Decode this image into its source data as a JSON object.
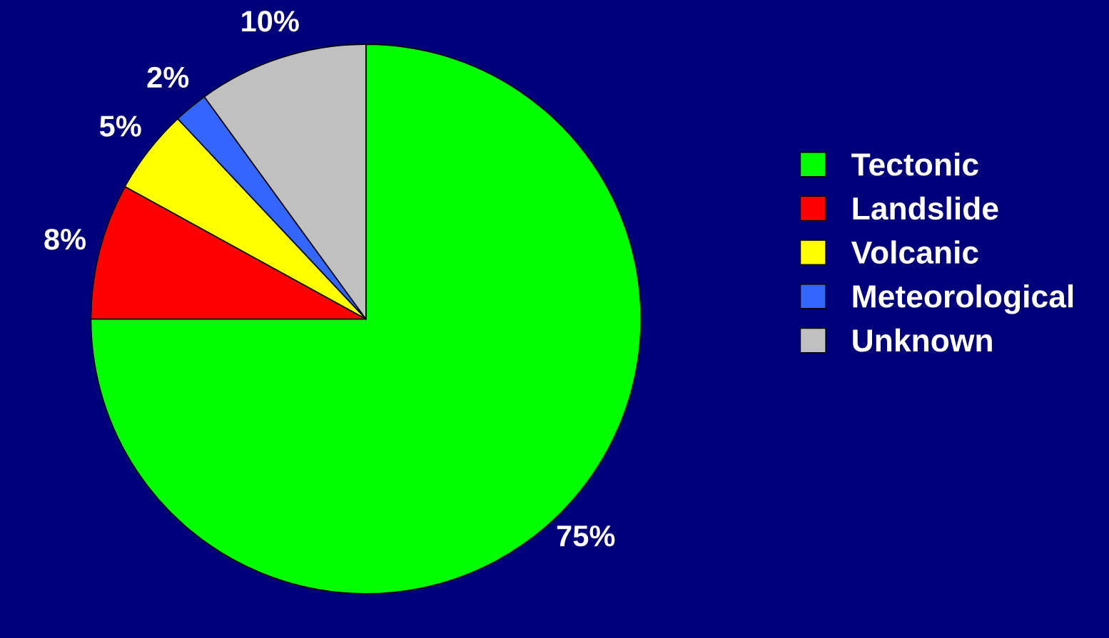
{
  "chart_data": {
    "type": "pie",
    "categories": [
      "Tectonic",
      "Landslide",
      "Volcanic",
      "Meteorological",
      "Unknown"
    ],
    "values": [
      75,
      8,
      5,
      2,
      10
    ],
    "colors": [
      "#00ff00",
      "#ff0000",
      "#ffff00",
      "#3366ff",
      "#c0c0c0"
    ],
    "value_labels": [
      "75%",
      "8%",
      "5%",
      "2%",
      "10%"
    ],
    "legend": "right"
  }
}
